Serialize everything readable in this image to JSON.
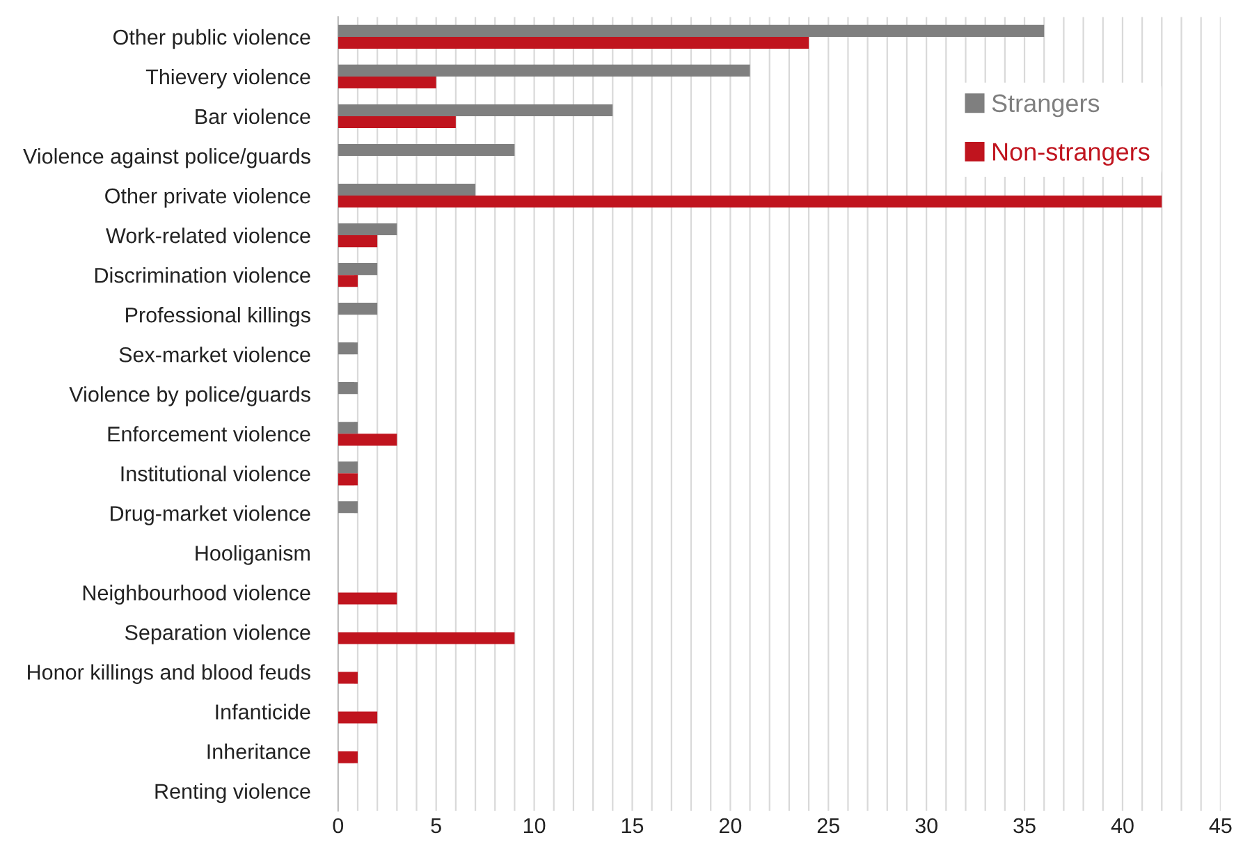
{
  "chart_data": {
    "type": "bar",
    "orientation": "horizontal",
    "categories": [
      "Other public violence",
      "Thievery violence",
      "Bar violence",
      "Violence against police/guards",
      "Other private violence",
      "Work-related violence",
      "Discrimination violence",
      "Professional killings",
      "Sex-market violence",
      "Violence by police/guards",
      "Enforcement violence",
      "Institutional violence",
      "Drug-market violence",
      "Hooliganism",
      "Neighbourhood violence",
      "Separation violence",
      "Honor killings and blood feuds",
      "Infanticide",
      "Inheritance",
      "Renting violence"
    ],
    "series": [
      {
        "name": "Strangers",
        "color": "#7f7f7f",
        "values": [
          36,
          21,
          14,
          9,
          7,
          3,
          2,
          2,
          1,
          1,
          1,
          1,
          1,
          0,
          0,
          0,
          0,
          0,
          0,
          0
        ]
      },
      {
        "name": "Non-strangers",
        "color": "#c0141e",
        "values": [
          24,
          5,
          6,
          0,
          42,
          2,
          1,
          0,
          0,
          0,
          3,
          1,
          0,
          0,
          3,
          9,
          1,
          2,
          1,
          0
        ]
      }
    ],
    "xlim": [
      0,
      45
    ],
    "xticks": [
      0,
      {
        "value": 1,
        "label": null
      },
      {
        "value": 2,
        "label": null
      },
      {
        "value": 3,
        "label": null
      },
      {
        "value": 4,
        "label": null
      },
      5,
      {
        "value": 6,
        "label": null
      },
      {
        "value": 7,
        "label": null
      },
      {
        "value": 8,
        "label": null
      },
      {
        "value": 9,
        "label": null
      },
      10,
      {
        "value": 11,
        "label": null
      },
      {
        "value": 12,
        "label": null
      },
      {
        "value": 13,
        "label": null
      },
      {
        "value": 14,
        "label": null
      },
      15,
      {
        "value": 16,
        "label": null
      },
      {
        "value": 17,
        "label": null
      },
      {
        "value": 18,
        "label": null
      },
      {
        "value": 19,
        "label": null
      },
      20,
      {
        "value": 21,
        "label": null
      },
      {
        "value": 22,
        "label": null
      },
      {
        "value": 23,
        "label": null
      },
      {
        "value": 24,
        "label": null
      },
      25,
      {
        "value": 26,
        "label": null
      },
      {
        "value": 27,
        "label": null
      },
      {
        "value": 28,
        "label": null
      },
      {
        "value": 29,
        "label": null
      },
      30,
      {
        "value": 31,
        "label": null
      },
      {
        "value": 32,
        "label": null
      },
      {
        "value": 33,
        "label": null
      },
      {
        "value": 34,
        "label": null
      },
      35,
      {
        "value": 36,
        "label": null
      },
      {
        "value": 37,
        "label": null
      },
      {
        "value": 38,
        "label": null
      },
      {
        "value": 39,
        "label": null
      },
      40,
      {
        "value": 41,
        "label": null
      },
      {
        "value": 42,
        "label": null
      },
      {
        "value": 43,
        "label": null
      },
      {
        "value": 44,
        "label": null
      },
      45
    ],
    "grid": "x",
    "legend": "top right"
  }
}
